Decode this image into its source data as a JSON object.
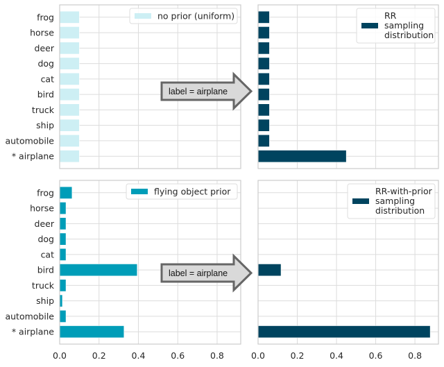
{
  "chart_data": [
    {
      "type": "bar",
      "orientation": "horizontal",
      "panel": "top-left",
      "categories": [
        "frog",
        "horse",
        "deer",
        "dog",
        "cat",
        "bird",
        "truck",
        "ship",
        "automobile",
        "* airplane"
      ],
      "series": [
        {
          "name": "no prior (uniform)",
          "values": [
            0.1,
            0.1,
            0.1,
            0.1,
            0.1,
            0.1,
            0.1,
            0.1,
            0.1,
            0.1
          ],
          "color": "#cdeff4"
        }
      ],
      "xlim": [
        0,
        0.92
      ],
      "xticks": [
        "0.0",
        "0.2",
        "0.4",
        "0.6",
        "0.8"
      ],
      "show_xticks": false,
      "grid": true,
      "legend": "top-right"
    },
    {
      "type": "bar",
      "orientation": "horizontal",
      "panel": "top-right",
      "categories": [
        "frog",
        "horse",
        "deer",
        "dog",
        "cat",
        "bird",
        "truck",
        "ship",
        "automobile",
        "* airplane"
      ],
      "series": [
        {
          "name": "RR\nsampling\ndistribution",
          "values": [
            0.058,
            0.058,
            0.058,
            0.058,
            0.058,
            0.058,
            0.058,
            0.058,
            0.058,
            0.45
          ],
          "color": "#00445f"
        }
      ],
      "xlim": [
        0,
        0.92
      ],
      "xticks": [
        "0.0",
        "0.2",
        "0.4",
        "0.6",
        "0.8"
      ],
      "show_xticks": false,
      "grid": true,
      "legend": "top-right"
    },
    {
      "type": "bar",
      "orientation": "horizontal",
      "panel": "bottom-left",
      "categories": [
        "frog",
        "horse",
        "deer",
        "dog",
        "cat",
        "bird",
        "truck",
        "ship",
        "automobile",
        "* airplane"
      ],
      "series": [
        {
          "name": "flying object prior",
          "values": [
            0.063,
            0.032,
            0.032,
            0.032,
            0.032,
            0.394,
            0.032,
            0.014,
            0.032,
            0.327
          ],
          "color": "#009db8"
        }
      ],
      "xlim": [
        0,
        0.92
      ],
      "xticks": [
        "0.0",
        "0.2",
        "0.4",
        "0.6",
        "0.8"
      ],
      "show_xticks": true,
      "grid": true,
      "legend": "top-right"
    },
    {
      "type": "bar",
      "orientation": "horizontal",
      "panel": "bottom-right",
      "categories": [
        "frog",
        "horse",
        "deer",
        "dog",
        "cat",
        "bird",
        "truck",
        "ship",
        "automobile",
        "* airplane"
      ],
      "series": [
        {
          "name": "RR-with-prior\nsampling\ndistribution",
          "values": [
            0,
            0,
            0,
            0,
            0,
            0.117,
            0,
            0,
            0,
            0.878
          ],
          "color": "#00445f"
        }
      ],
      "xlim": [
        0,
        0.92
      ],
      "xticks": [
        "0.0",
        "0.2",
        "0.4",
        "0.6",
        "0.8"
      ],
      "show_xticks": true,
      "grid": true,
      "legend": "top-right"
    }
  ],
  "annotations": {
    "top_arrow_label": "label = airplane",
    "bottom_arrow_label": "label = airplane"
  }
}
